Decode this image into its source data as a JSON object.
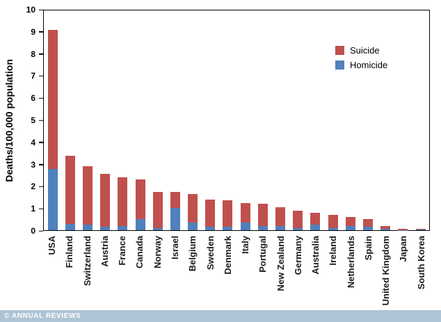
{
  "chart_data": {
    "type": "bar",
    "stacked": true,
    "title": "",
    "xlabel": "",
    "ylabel": "Deaths/100,000 population",
    "ylim": [
      0,
      10
    ],
    "yticks": [
      0,
      1,
      2,
      3,
      4,
      5,
      6,
      7,
      8,
      9,
      10
    ],
    "grid": false,
    "legend_position": "top-right-inside",
    "categories": [
      "USA",
      "Finland",
      "Switzerland",
      "Austria",
      "France",
      "Canada",
      "Norway",
      "Israel",
      "Belgium",
      "Sweden",
      "Denmark",
      "Italy",
      "Portugal",
      "New Zealand",
      "Germany",
      "Australia",
      "Ireland",
      "Netherlands",
      "Spain",
      "United Kingdom",
      "Japan",
      "South Korea"
    ],
    "series": [
      {
        "name": "Homicide",
        "color": "#4f81bd",
        "values": [
          2.8,
          0.3,
          0.25,
          0.15,
          0.2,
          0.5,
          0.1,
          1.0,
          0.35,
          0.15,
          0.15,
          0.35,
          0.2,
          0.2,
          0.1,
          0.25,
          0.1,
          0.2,
          0.15,
          0.05,
          0.01,
          0.02
        ]
      },
      {
        "name": "Suicide",
        "color": "#c0504d",
        "values": [
          6.3,
          3.1,
          2.65,
          2.4,
          2.2,
          1.8,
          1.65,
          0.75,
          1.3,
          1.25,
          1.2,
          0.9,
          1.0,
          0.85,
          0.8,
          0.55,
          0.6,
          0.4,
          0.35,
          0.15,
          0.05,
          0.03
        ]
      }
    ]
  },
  "legend": {
    "items": [
      {
        "label": "Suicide",
        "color": "#c0504d"
      },
      {
        "label": "Homicide",
        "color": "#4f81bd"
      }
    ]
  },
  "footer": {
    "watermark": "© ANNUAL REVIEWS"
  }
}
